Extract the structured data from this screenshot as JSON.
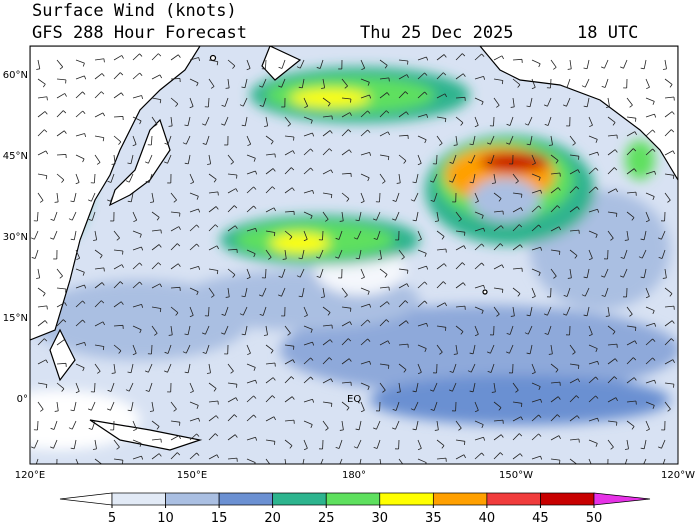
{
  "header": {
    "title": "Surface Wind (knots)",
    "forecast": "GFS 288 Hour Forecast",
    "date": "Thu 25 Dec 2025",
    "time": "18 UTC"
  },
  "map": {
    "lat_labels": [
      "60°N",
      "45°N",
      "30°N",
      "15°N",
      "0°"
    ],
    "lon_labels": [
      "120°E",
      "150°E",
      "180°",
      "150°W",
      "120°W"
    ],
    "equator_label": "EQ"
  },
  "colorbar": {
    "ticks": [
      5,
      10,
      15,
      20,
      25,
      30,
      35,
      40,
      45,
      50
    ],
    "colors": [
      "#ffffff",
      "#e2eaf6",
      "#aabfe2",
      "#6b90d2",
      "#2db48e",
      "#5ee05e",
      "#ffff00",
      "#ffa000",
      "#f03c3c",
      "#c80000",
      "#e632e6"
    ]
  }
}
